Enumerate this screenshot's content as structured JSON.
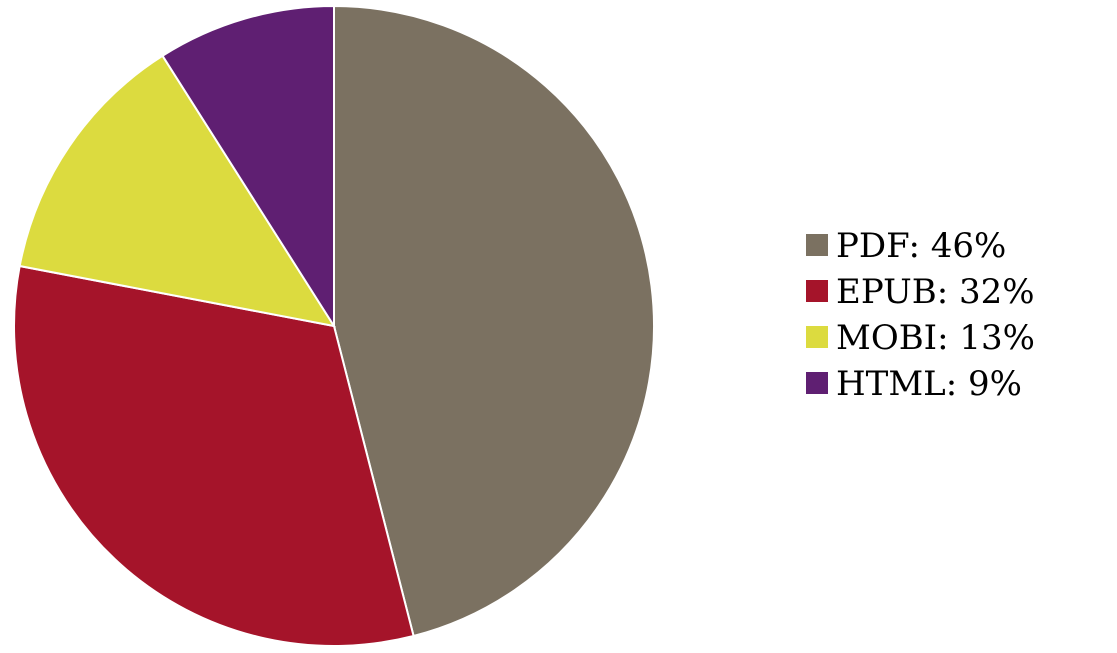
{
  "chart_data": {
    "type": "pie",
    "title": "",
    "legend_position": "right",
    "start_angle_deg": 0,
    "direction": "clockwise",
    "slices": [
      {
        "label": "PDF: 46%",
        "name": "PDF",
        "value": 46,
        "color": "#7b7161"
      },
      {
        "label": "EPUB: 32%",
        "name": "EPUB",
        "value": 32,
        "color": "#a5142a"
      },
      {
        "label": "MOBI: 13%",
        "name": "MOBI",
        "value": 13,
        "color": "#dcdb3f"
      },
      {
        "label": "HTML: 9%",
        "name": "HTML",
        "value": 9,
        "color": "#5f1f72"
      }
    ]
  }
}
